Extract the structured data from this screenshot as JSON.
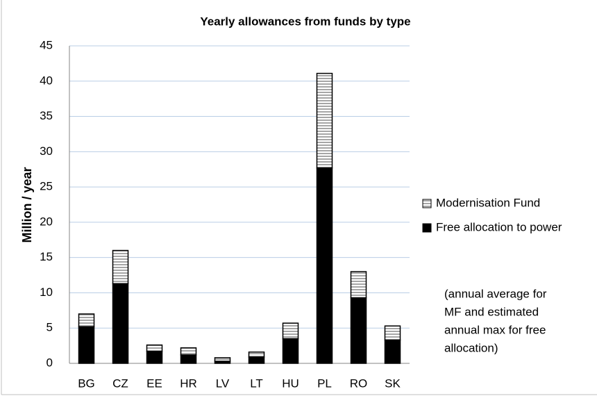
{
  "chart_data": {
    "type": "stacked_bar",
    "title": "Yearly allowances from funds by type",
    "ylabel": "Million / year",
    "categories": [
      "BG",
      "CZ",
      "EE",
      "HR",
      "LV",
      "LT",
      "HU",
      "PL",
      "RO",
      "SK"
    ],
    "series": [
      {
        "name": "Free allocation to power",
        "color": "#000000",
        "values": [
          5.2,
          11.3,
          1.7,
          1.2,
          0.3,
          0.9,
          3.5,
          27.7,
          9.3,
          3.3
        ]
      },
      {
        "name": "Modernisation Fund",
        "color": "#a6a6a6",
        "values": [
          1.8,
          4.7,
          0.9,
          1.0,
          0.5,
          0.7,
          2.2,
          13.4,
          3.7,
          2.0
        ]
      }
    ],
    "ylim": [
      0,
      45
    ],
    "yticks": [
      0,
      5,
      10,
      15,
      20,
      25,
      30,
      35,
      40,
      45
    ],
    "grid": true,
    "annotation": [
      "(annual average for",
      "MF and estimated",
      "annual max for free",
      "allocation)"
    ]
  }
}
